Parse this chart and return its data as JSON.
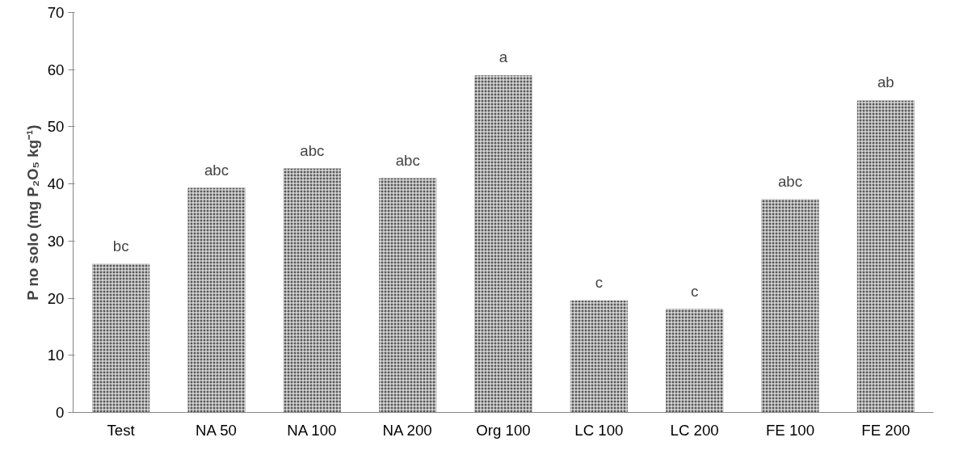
{
  "chart_data": {
    "type": "bar",
    "ylabel": "P no solo (mg P₂O₅ kg⁻¹)",
    "categories": [
      "Test",
      "NA 50",
      "NA 100",
      "NA 200",
      "Org 100",
      "LC 100",
      "LC 200",
      "FE 100",
      "FE 200"
    ],
    "values": [
      26,
      39.3,
      42.7,
      41,
      59,
      19.6,
      18.1,
      37.3,
      54.6
    ],
    "color": "#595959",
    "ylim": [
      0,
      70
    ],
    "yticks": [
      0,
      10,
      20,
      30,
      40,
      50,
      60,
      70
    ],
    "grid": false,
    "annotations": [
      {
        "text": "bc",
        "x": "Test",
        "y": 26
      },
      {
        "text": "abc",
        "x": "NA 50",
        "y": 39.3
      },
      {
        "text": "abc",
        "x": "NA 100",
        "y": 42.7
      },
      {
        "text": "abc",
        "x": "NA 200",
        "y": 41
      },
      {
        "text": "a",
        "x": "Org 100",
        "y": 59
      },
      {
        "text": "c",
        "x": "LC 100",
        "y": 19.6
      },
      {
        "text": "c",
        "x": "LC 200",
        "y": 18.1
      },
      {
        "text": "abc",
        "x": "FE 100",
        "y": 37.3
      },
      {
        "text": "ab",
        "x": "FE 200",
        "y": 54.6
      }
    ]
  }
}
